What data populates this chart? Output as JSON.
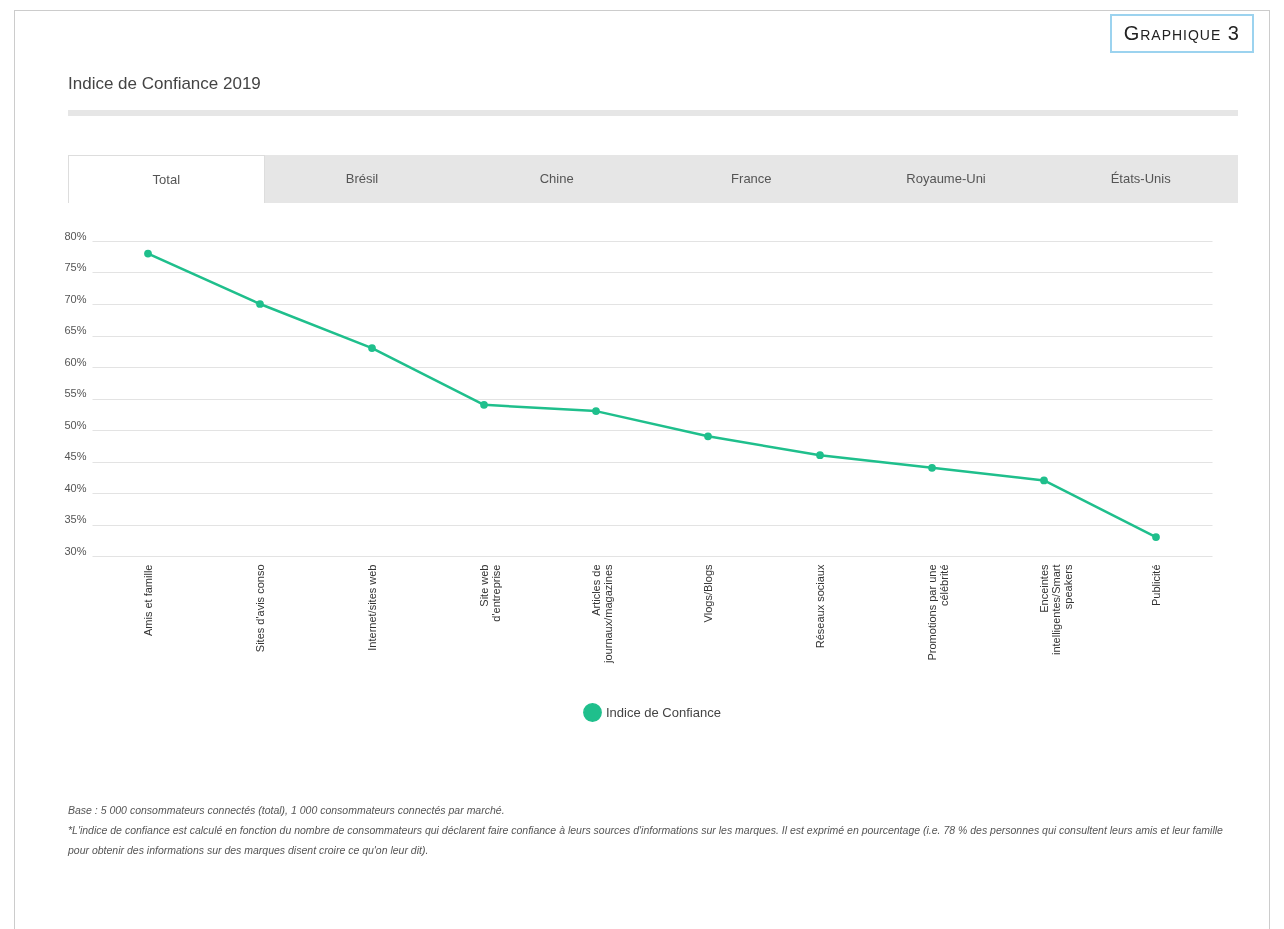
{
  "chart_data": {
    "type": "line",
    "title": "Indice de Confiance 2019",
    "categories": [
      "Amis et famille",
      "Sites d'avis conso",
      "Internet/sites web",
      "Site web d'entreprise",
      "Articles de journaux/magazines",
      "Vlogs/Blogs",
      "Réseaux sociaux",
      "Promotions par une célébrité",
      "Enceintes intelligentes/Smart speakers",
      "Publicité"
    ],
    "series": [
      {
        "name": "Indice de Confiance",
        "color": "#1fbf8c",
        "values": [
          78,
          70,
          63,
          54,
          53,
          49,
          46,
          44,
          42,
          33
        ]
      }
    ],
    "ylim": [
      30,
      80
    ],
    "yticks": [
      {
        "value": 30,
        "label": "30%"
      },
      {
        "value": 35,
        "label": "35%"
      },
      {
        "value": 40,
        "label": "40%"
      },
      {
        "value": 45,
        "label": "45%"
      },
      {
        "value": 50,
        "label": "50%"
      },
      {
        "value": 55,
        "label": "55%"
      },
      {
        "value": 60,
        "label": "60%"
      },
      {
        "value": 65,
        "label": "65%"
      },
      {
        "value": 70,
        "label": "70%"
      },
      {
        "value": 75,
        "label": "75%"
      },
      {
        "value": 80,
        "label": "80%"
      }
    ],
    "grid": "y",
    "legend": "bottom",
    "marker": "circle",
    "line_style": "solid",
    "annotations": [
      "Graphique 3",
      "Total",
      "Brésil",
      "Chine",
      "France",
      "Royaume-Uni",
      "États-Unis",
      "Base : 5 000 consommateurs connectés (total), 1 000 consommateurs connectés par marché.",
      "*L'indice de confiance est calculé en fonction du nombre de consommateurs qui déclarent faire confiance à leurs sources d'informations sur les marques. Il est exprimé en pourcentage (i.e. 78 % des personnes qui consultent leurs amis et leur famille pour obtenir des informations sur des marques disent croire ce qu'on leur dit)."
    ]
  }
}
